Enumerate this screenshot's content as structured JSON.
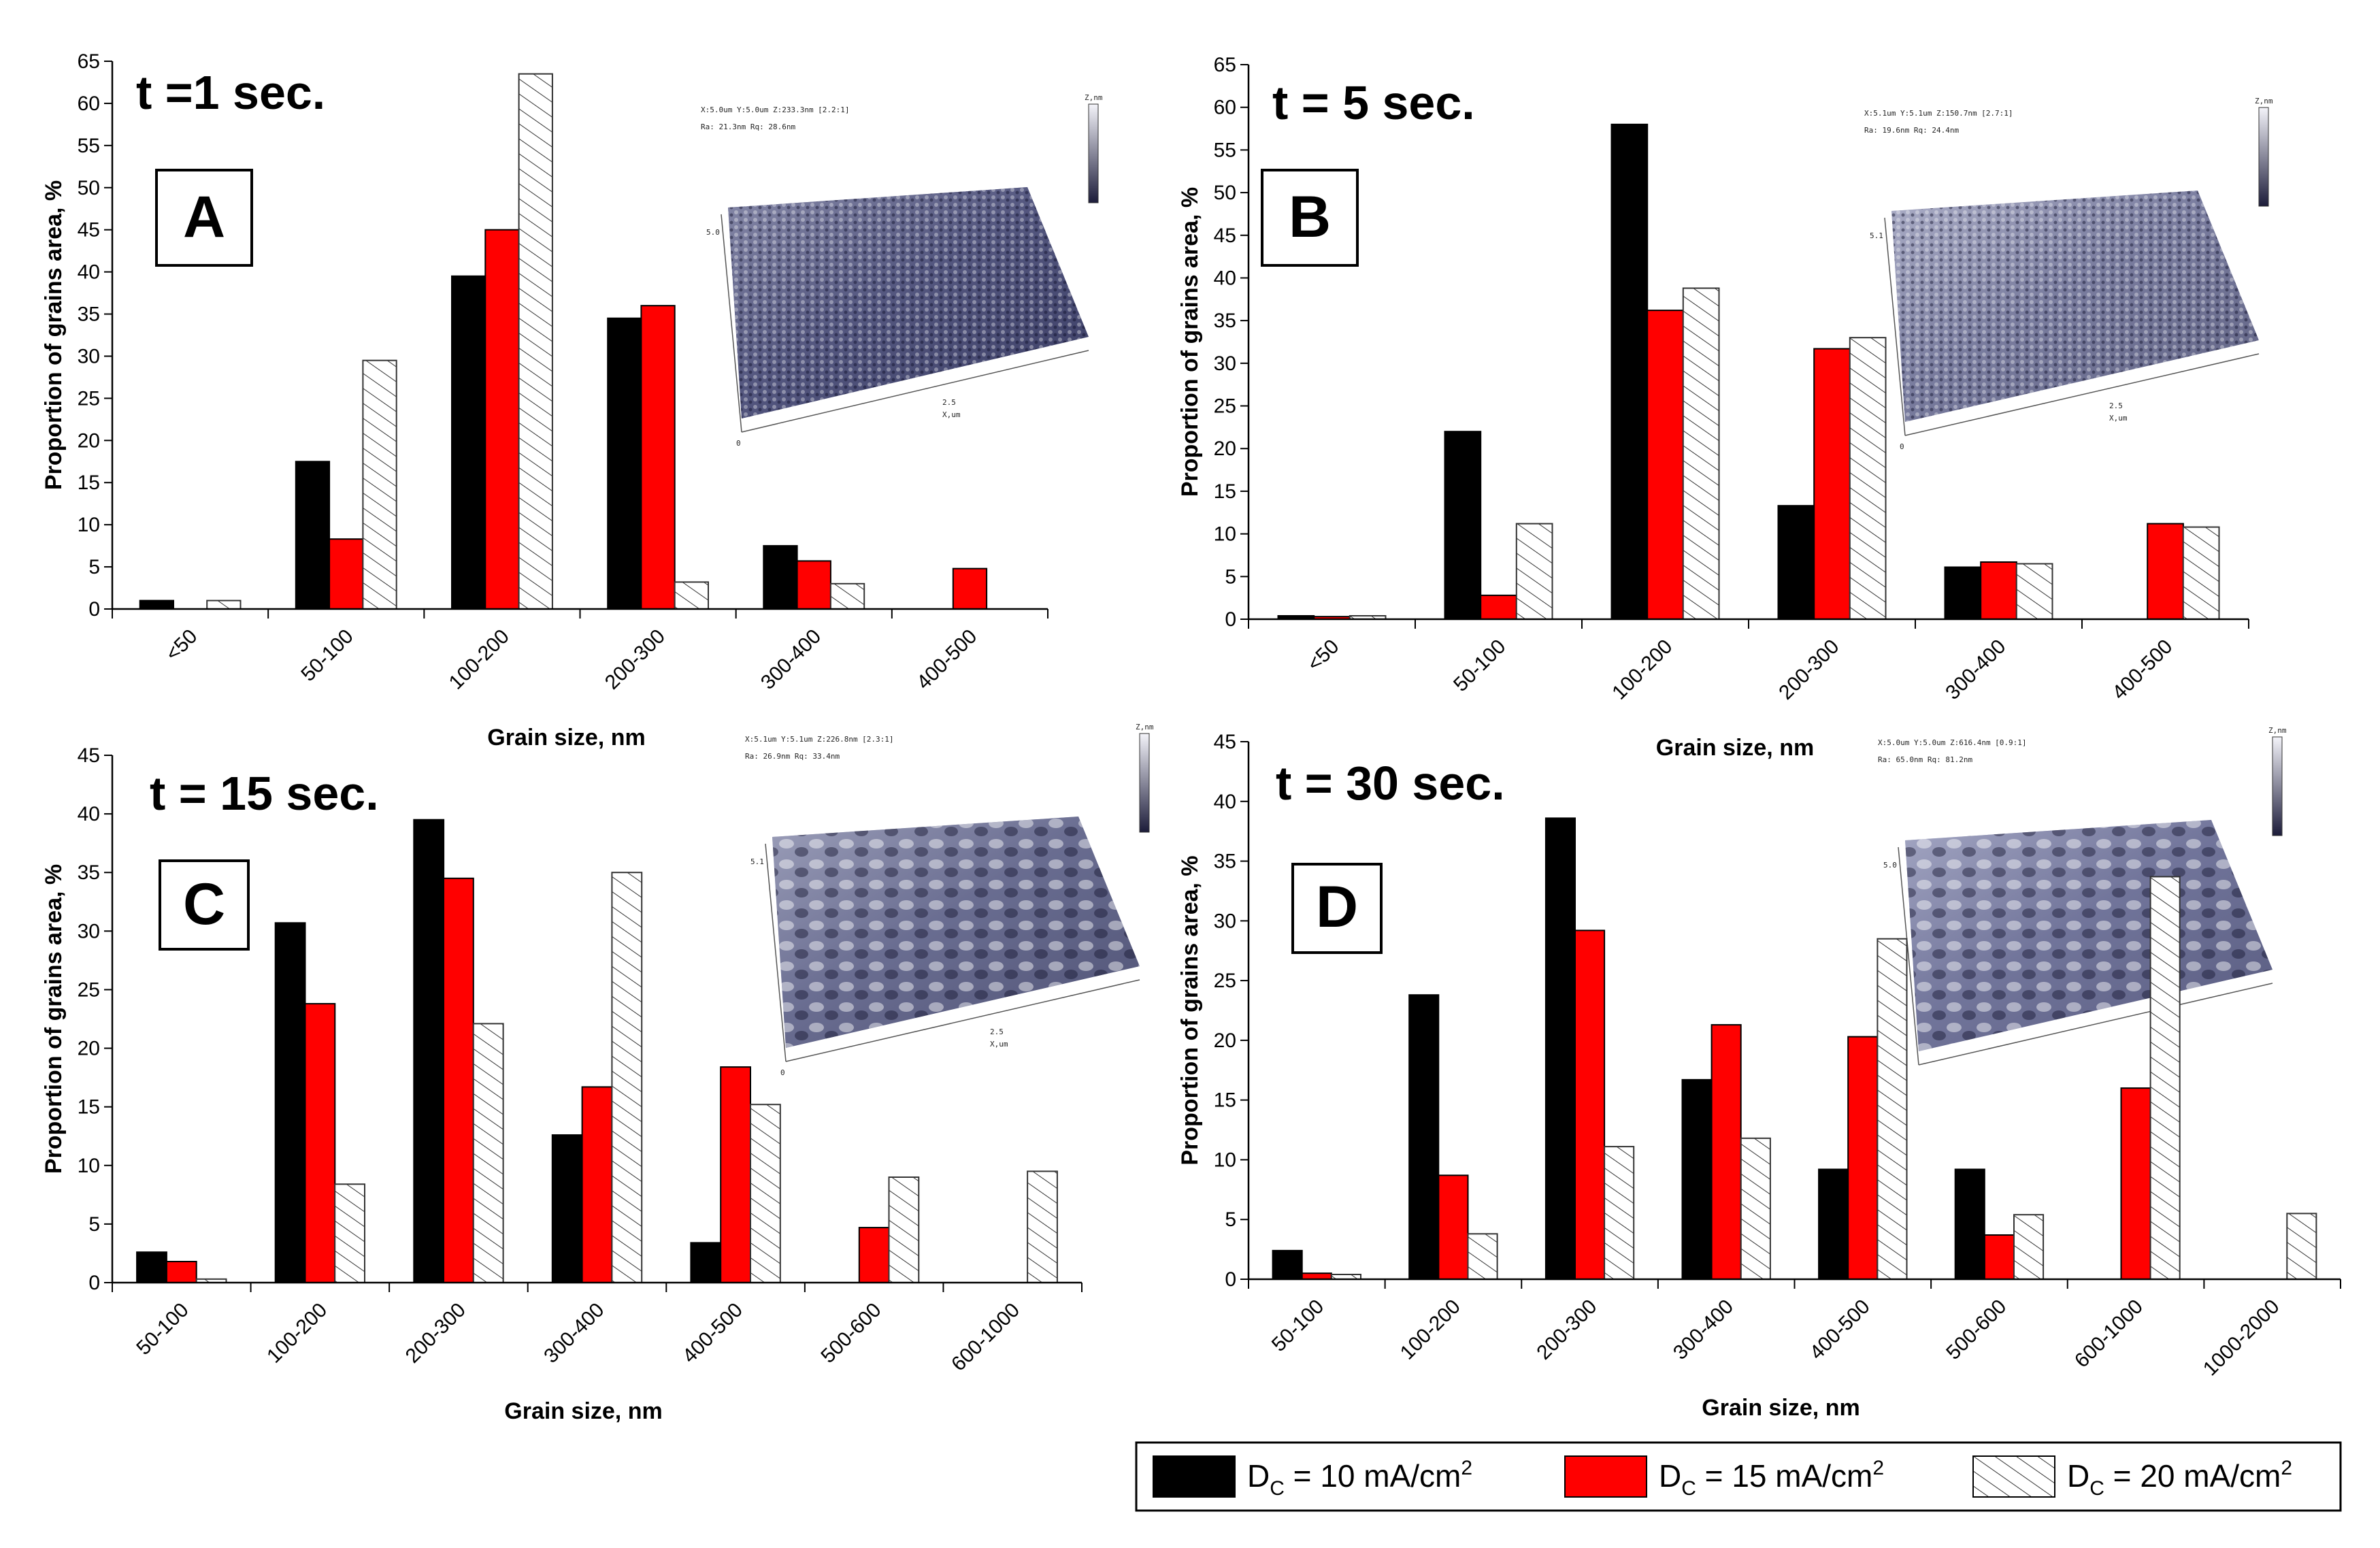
{
  "legend": {
    "series": [
      {
        "name": "DC10",
        "label_d": "D",
        "label_sub": "C",
        "label_mid": " = 10 mA/cm",
        "label_sup": "2",
        "color": "#000000",
        "pattern": "solid"
      },
      {
        "name": "DC15",
        "label_d": "D",
        "label_sub": "C",
        "label_mid": " = 15 mA/cm",
        "label_sup": "2",
        "color": "#ff0000",
        "pattern": "solid"
      },
      {
        "name": "DC20",
        "label_d": "D",
        "label_sub": "C",
        "label_mid": " = 20 mA/cm",
        "label_sup": "2",
        "color": "#ffffff",
        "pattern": "hatched"
      }
    ]
  },
  "chart_data": [
    {
      "type": "bar",
      "panel": "A",
      "title": "t =1 sec.",
      "xlabel": "Grain size, nm",
      "ylabel": "Proportion of grains area, %",
      "ylim": [
        0,
        65
      ],
      "yticks": [
        "0",
        "5",
        "10",
        "15",
        "20",
        "25",
        "30",
        "35",
        "40",
        "45",
        "50",
        "55",
        "60",
        "65"
      ],
      "categories": [
        "<50",
        "50-100",
        "100-200",
        "200-300",
        "300-400",
        "400-500"
      ],
      "series": [
        {
          "name": "DC10",
          "values": [
            1,
            17.5,
            39.5,
            34.5,
            7.5,
            null
          ]
        },
        {
          "name": "DC15",
          "values": [
            null,
            8.3,
            45,
            36,
            5.7,
            4.8
          ]
        },
        {
          "name": "DC20",
          "values": [
            1,
            29.5,
            63.5,
            3.2,
            3,
            null
          ]
        }
      ],
      "afm_inset": {
        "line1": "X:5.0um  Y:5.0um  Z:233.3nm [2.2:1]",
        "line2": "Ra: 21.3nm  Rq: 28.6nm",
        "axis_y": "5.0",
        "axis_x": "2.5",
        "zero": "0",
        "unit": "X,um",
        "scale_title": "Z,nm"
      }
    },
    {
      "type": "bar",
      "panel": "B",
      "title": "t = 5 sec.",
      "xlabel": "Grain size, nm",
      "ylabel": "Proportion of grains area, %",
      "ylim": [
        0,
        65
      ],
      "yticks": [
        "0",
        "5",
        "10",
        "15",
        "20",
        "25",
        "30",
        "35",
        "40",
        "45",
        "50",
        "55",
        "60",
        "65"
      ],
      "categories": [
        "<50",
        "50-100",
        "100-200",
        "200-300",
        "300-400",
        "400-500"
      ],
      "series": [
        {
          "name": "DC10",
          "values": [
            0.4,
            22,
            58,
            13.3,
            6.1,
            null
          ]
        },
        {
          "name": "DC15",
          "values": [
            0.3,
            2.8,
            36.2,
            31.7,
            6.7,
            11.2
          ]
        },
        {
          "name": "DC20",
          "values": [
            0.4,
            11.2,
            38.8,
            33,
            6.5,
            10.8
          ]
        }
      ],
      "afm_inset": {
        "line1": "X:5.1um  Y:5.1um  Z:150.7nm [2.7:1]",
        "line2": "Ra: 19.6nm  Rq: 24.4nm",
        "axis_y": "5.1",
        "axis_x": "2.5",
        "zero": "0",
        "unit": "X,um",
        "scale_title": "Z,nm"
      }
    },
    {
      "type": "bar",
      "panel": "C",
      "title": "t = 15 sec.",
      "xlabel": "Grain size, nm",
      "ylabel": "Proportion of grains area, %",
      "ylim": [
        0,
        45
      ],
      "yticks": [
        "0",
        "5",
        "10",
        "15",
        "20",
        "25",
        "30",
        "35",
        "40",
        "45"
      ],
      "categories": [
        "50-100",
        "100-200",
        "200-300",
        "300-400",
        "400-500",
        "500-600",
        "600-1000"
      ],
      "series": [
        {
          "name": "DC10",
          "values": [
            2.6,
            30.7,
            39.5,
            12.6,
            3.4,
            null,
            null
          ]
        },
        {
          "name": "DC15",
          "values": [
            1.8,
            23.8,
            34.5,
            16.7,
            18.4,
            4.7,
            null
          ]
        },
        {
          "name": "DC20",
          "values": [
            0.3,
            8.4,
            22.1,
            35,
            15.2,
            9,
            9.5
          ]
        }
      ],
      "afm_inset": {
        "line1": "X:5.1um  Y:5.1um  Z:226.8nm [2.3:1]",
        "line2": "Ra: 26.9nm  Rq: 33.4nm",
        "axis_y": "5.1",
        "axis_x": "2.5",
        "zero": "0",
        "unit": "X,um",
        "scale_title": "Z,nm"
      }
    },
    {
      "type": "bar",
      "panel": "D",
      "title": "t = 30 sec.",
      "xlabel": "Grain size, nm",
      "ylabel": "Proportion of grains area, %",
      "ylim": [
        0,
        45
      ],
      "yticks": [
        "0",
        "5",
        "10",
        "15",
        "20",
        "25",
        "30",
        "35",
        "40",
        "45"
      ],
      "categories": [
        "50-100",
        "100-200",
        "200-300",
        "300-400",
        "400-500",
        "500-600",
        "600-1000",
        "1000-2000"
      ],
      "series": [
        {
          "name": "DC10",
          "values": [
            2.4,
            23.8,
            38.6,
            16.7,
            9.2,
            9.2,
            null,
            null
          ]
        },
        {
          "name": "DC15",
          "values": [
            0.5,
            8.7,
            29.2,
            21.3,
            20.3,
            3.7,
            16,
            null
          ]
        },
        {
          "name": "DC20",
          "values": [
            0.4,
            3.8,
            11.1,
            11.8,
            28.5,
            5.4,
            33.7,
            5.5
          ]
        }
      ],
      "afm_inset": {
        "line1": "X:5.0um  Y:5.0um  Z:616.4nm [0.9:1]",
        "line2": "Ra: 65.0nm  Rq: 81.2nm",
        "axis_y": "5.0",
        "axis_x": "",
        "zero": "",
        "unit": "",
        "scale_title": "Z,nm"
      }
    }
  ]
}
